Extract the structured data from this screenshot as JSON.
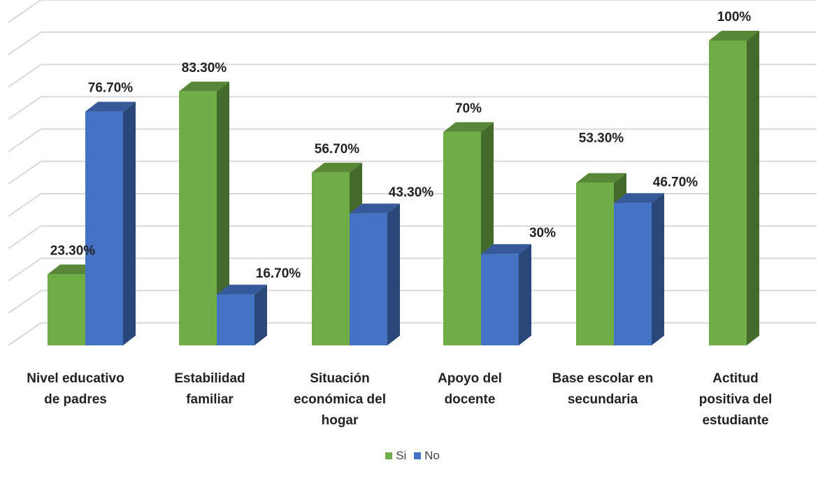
{
  "chart_data": {
    "type": "bar",
    "categories": [
      [
        "Nivel educativo",
        "de padres"
      ],
      [
        "Estabilidad",
        "familiar"
      ],
      [
        "Situación",
        "económica del",
        "hogar"
      ],
      [
        "Apoyo del",
        "docente"
      ],
      [
        "Base escolar en",
        "secundaria"
      ],
      [
        "Actitud",
        "positiva del",
        "estudiante"
      ]
    ],
    "series": [
      {
        "name": "Si",
        "color": "#70ad47",
        "values": [
          23.3,
          83.3,
          56.7,
          70,
          53.3,
          100
        ],
        "labels": [
          "23.30%",
          "83.30%",
          "56.70%",
          "70%",
          "53.30%",
          "100%"
        ]
      },
      {
        "name": "No",
        "color": "#4472c4",
        "values": [
          76.7,
          16.7,
          43.3,
          30,
          46.7,
          null
        ],
        "labels": [
          "76.70%",
          "16.70%",
          "43.30%",
          "30%",
          "46.70%",
          null
        ]
      }
    ],
    "ylim": [
      0,
      100
    ],
    "grid": true,
    "legend_position": "bottom"
  }
}
